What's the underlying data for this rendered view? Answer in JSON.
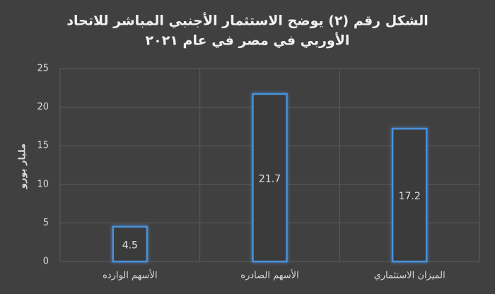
{
  "chart_data": {
    "type": "bar",
    "title": [
      "الشكل رقم (٢) يوضح الاستثمار الأجنبي المباشر للاتحاد",
      "الأوربي في مصر في عام ٢٠٢١"
    ],
    "y_label": "مليار يورو",
    "categories": [
      "الأسهم الوارده",
      "الأسهم الصادره",
      "الميزان الاستثماري"
    ],
    "values": [
      4.5,
      21.7,
      17.2
    ],
    "color": "#4a90d9",
    "ylim": [
      0,
      25
    ],
    "yticks": [
      0,
      5,
      10,
      15,
      20,
      25
    ],
    "grid": true
  }
}
